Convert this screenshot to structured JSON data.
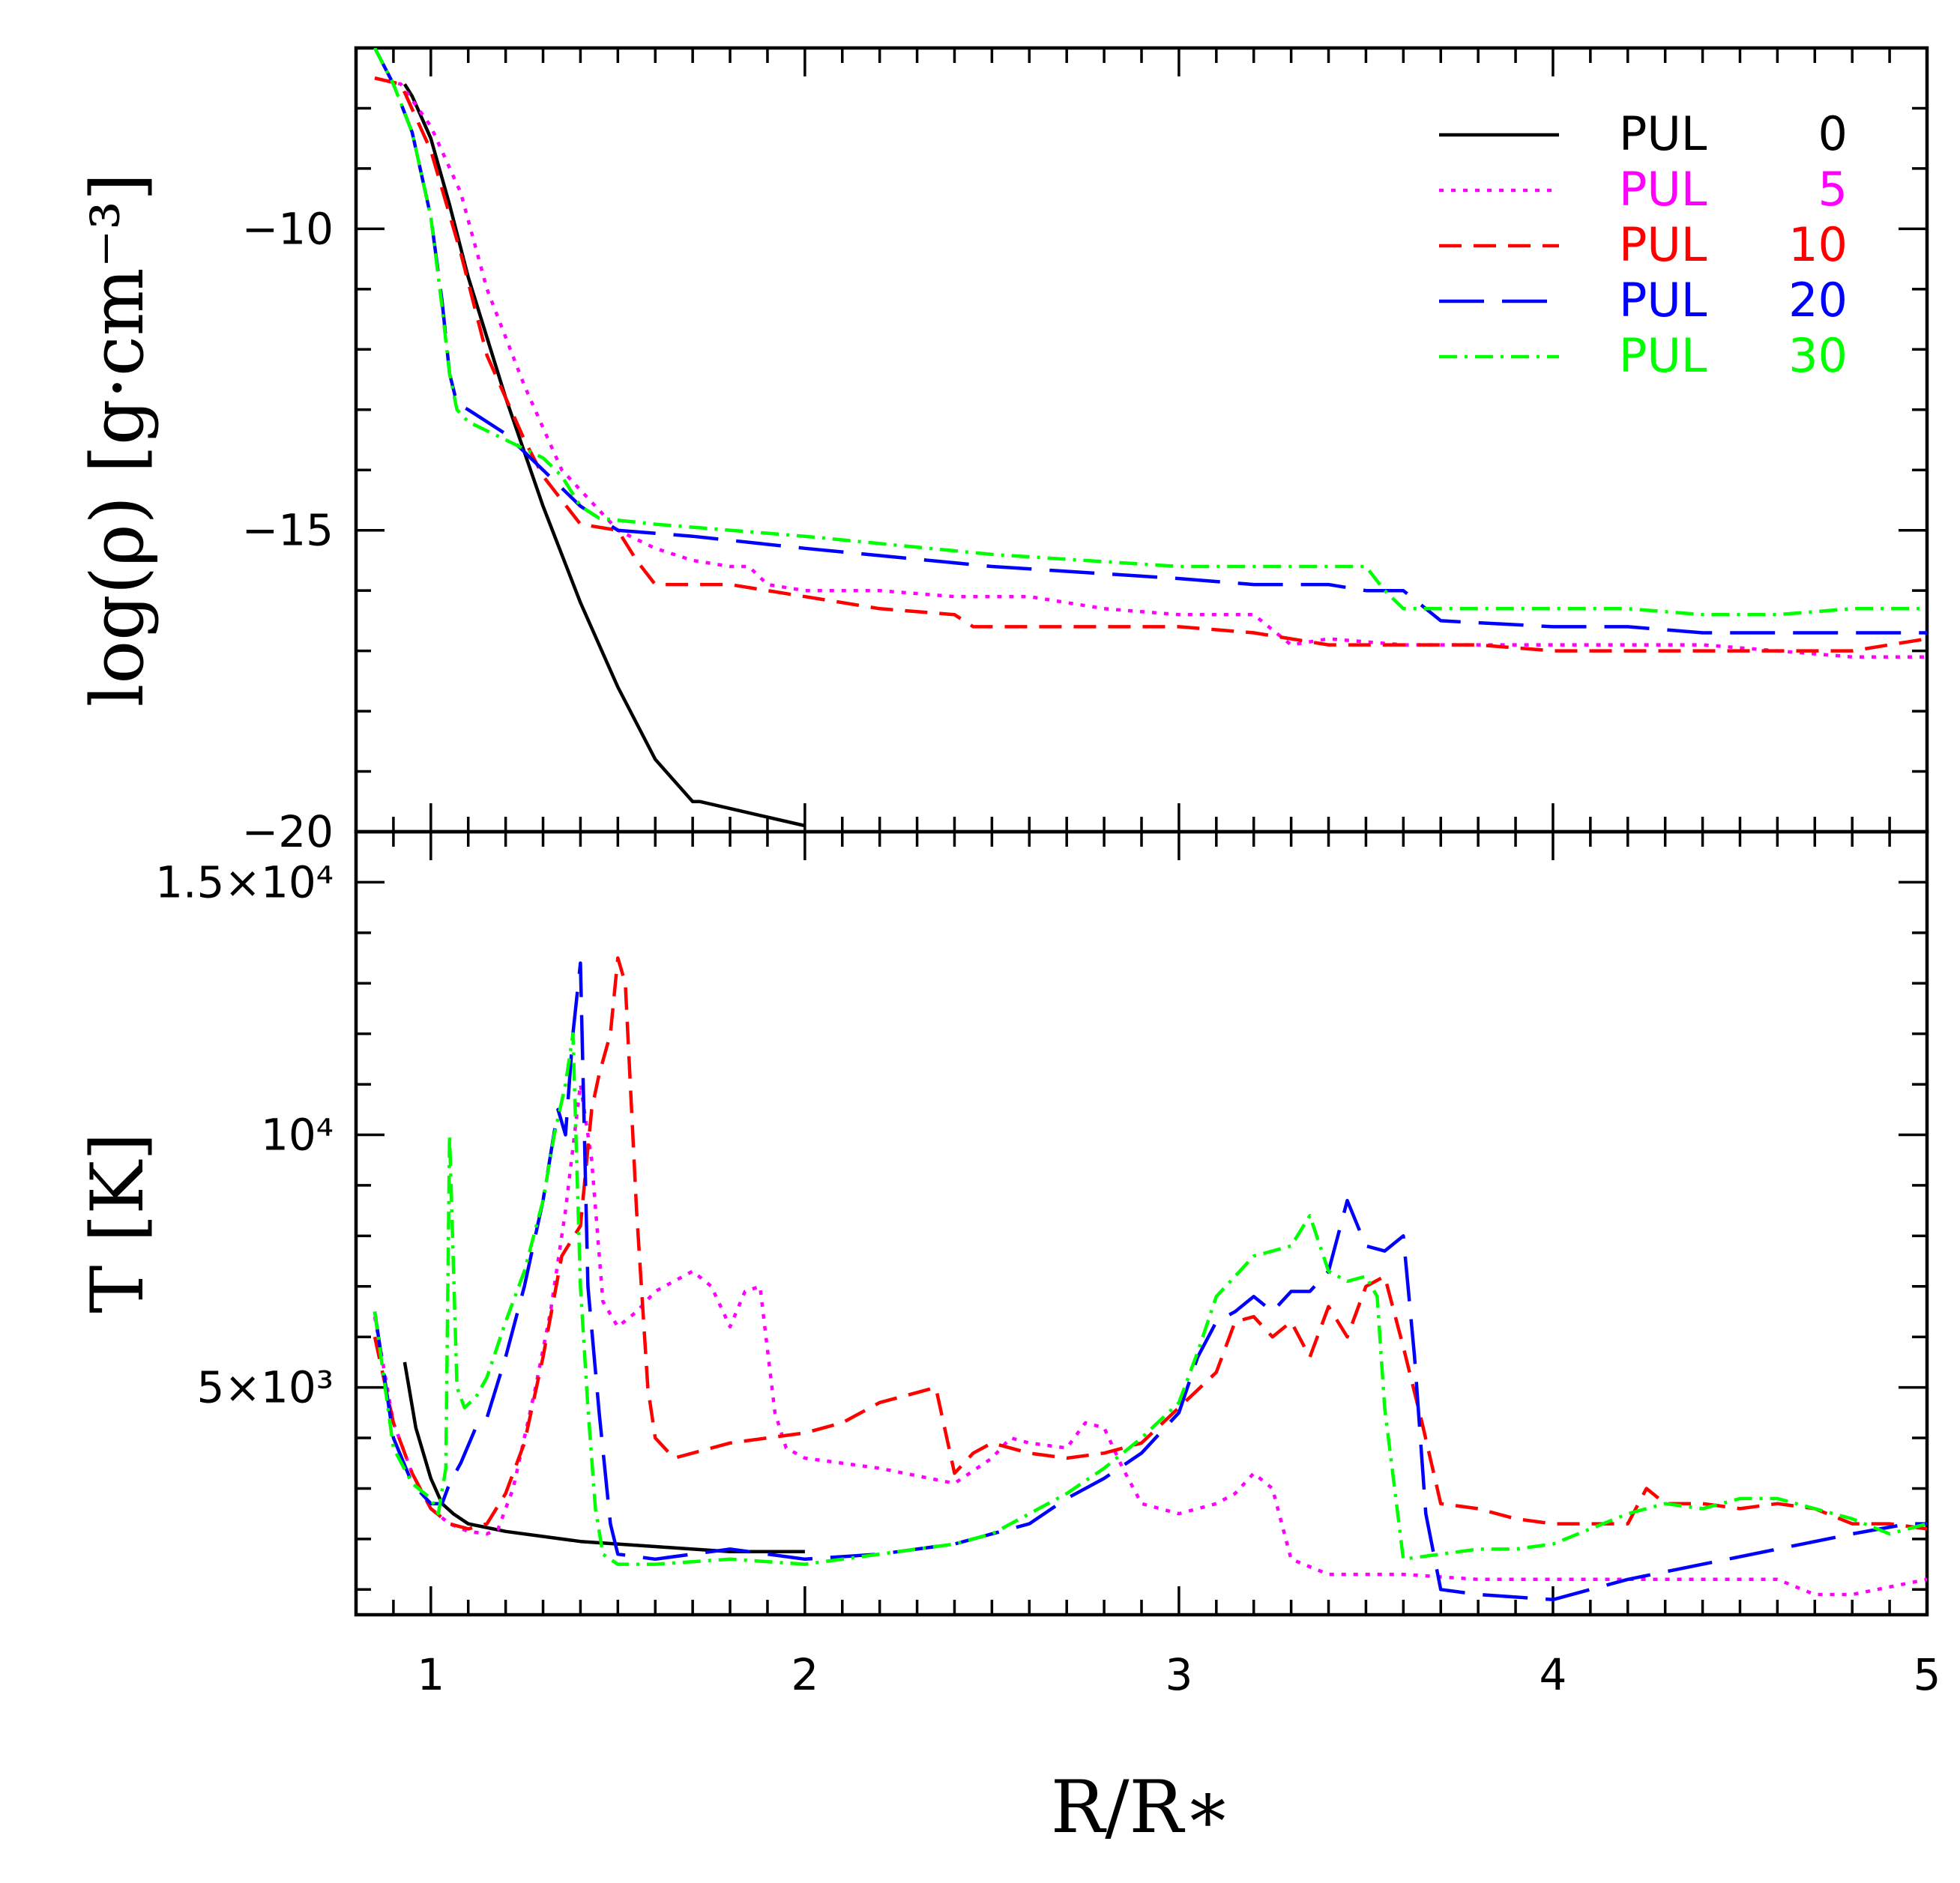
{
  "chart_data": [
    {
      "type": "line",
      "panel": "top",
      "ylabel": "log(ρ)  [g·cm⁻³]",
      "xlabel": "",
      "xlim": [
        0.8,
        5.0
      ],
      "ylim": [
        -20,
        -7
      ],
      "yticks": [
        -20,
        -15,
        -10
      ],
      "ytick_labels": [
        "−20",
        "−15",
        "−10"
      ],
      "legend": "top-right",
      "series": [
        {
          "name": "PUL 0",
          "label": "PUL",
          "num": "0",
          "color": "#000000",
          "dash": "",
          "x": [
            0.93,
            0.95,
            1.0,
            1.05,
            1.1,
            1.2,
            1.3,
            1.4,
            1.5,
            1.6,
            1.7,
            1.72,
            2.0
          ],
          "y": [
            -7.6,
            -7.8,
            -8.5,
            -9.6,
            -10.8,
            -12.8,
            -14.6,
            -16.2,
            -17.6,
            -18.8,
            -19.5,
            -19.5,
            -19.9
          ]
        },
        {
          "name": "PUL 5",
          "label": "PUL",
          "num": "5",
          "color": "#ff00ff",
          "dash": "6,10",
          "x": [
            0.85,
            0.92,
            1.0,
            1.08,
            1.15,
            1.25,
            1.35,
            1.5,
            1.6,
            1.7,
            1.8,
            1.85,
            1.9,
            2.0,
            2.2,
            2.4,
            2.6,
            2.8,
            3.0,
            3.2,
            3.3,
            3.4,
            3.6,
            3.8,
            4.0,
            4.2,
            4.4,
            4.6,
            4.8,
            5.0
          ],
          "y": [
            -7.5,
            -7.6,
            -8.3,
            -9.4,
            -11.0,
            -12.6,
            -14.0,
            -15.0,
            -15.3,
            -15.5,
            -15.6,
            -15.6,
            -15.9,
            -16.0,
            -16.0,
            -16.1,
            -16.1,
            -16.3,
            -16.4,
            -16.4,
            -16.9,
            -16.8,
            -16.9,
            -16.9,
            -16.9,
            -16.9,
            -16.9,
            -17.0,
            -17.1,
            -17.1
          ]
        },
        {
          "name": "PUL 10",
          "label": "PUL",
          "num": "10",
          "color": "#ff0000",
          "dash": "30,16",
          "x": [
            0.85,
            0.92,
            1.0,
            1.08,
            1.15,
            1.2,
            1.25,
            1.3,
            1.4,
            1.5,
            1.55,
            1.6,
            1.8,
            2.0,
            2.2,
            2.4,
            2.45,
            2.6,
            2.8,
            3.0,
            3.2,
            3.4,
            3.6,
            3.8,
            4.0,
            4.2,
            4.4,
            4.6,
            4.8,
            5.0
          ],
          "y": [
            -7.5,
            -7.6,
            -8.7,
            -10.4,
            -12.1,
            -12.8,
            -13.5,
            -14.1,
            -14.9,
            -15.0,
            -15.5,
            -15.9,
            -15.9,
            -16.1,
            -16.3,
            -16.4,
            -16.6,
            -16.6,
            -16.6,
            -16.6,
            -16.7,
            -16.9,
            -16.9,
            -16.9,
            -17.0,
            -17.0,
            -17.0,
            -17.0,
            -17.0,
            -16.8
          ]
        },
        {
          "name": "PUL 20",
          "label": "PUL",
          "num": "20",
          "color": "#0000ff",
          "dash": "60,24",
          "x": [
            0.85,
            0.9,
            0.95,
            1.0,
            1.03,
            1.05,
            1.07,
            1.1,
            1.2,
            1.3,
            1.4,
            1.5,
            1.7,
            2.0,
            2.5,
            3.0,
            3.2,
            3.4,
            3.5,
            3.6,
            3.7,
            4.0,
            4.2,
            4.4,
            4.6,
            4.8,
            4.95,
            5.0
          ],
          "y": [
            -7.0,
            -7.6,
            -8.4,
            -9.8,
            -11.2,
            -12.4,
            -12.9,
            -13.0,
            -13.4,
            -14.0,
            -14.6,
            -15.0,
            -15.1,
            -15.3,
            -15.6,
            -15.8,
            -15.9,
            -15.9,
            -16.0,
            -16.0,
            -16.5,
            -16.6,
            -16.6,
            -16.7,
            -16.7,
            -16.7,
            -16.7,
            -16.7
          ]
        },
        {
          "name": "PUL 30",
          "label": "PUL",
          "num": "30",
          "color": "#00ff00",
          "dash": "24,10,4,10",
          "x": [
            0.85,
            0.9,
            0.95,
            1.0,
            1.03,
            1.05,
            1.07,
            1.1,
            1.2,
            1.3,
            1.35,
            1.4,
            1.45,
            1.6,
            2.0,
            2.5,
            3.0,
            3.3,
            3.5,
            3.55,
            3.6,
            3.8,
            4.0,
            4.2,
            4.4,
            4.6,
            4.8,
            5.0
          ],
          "y": [
            -7.0,
            -7.6,
            -8.4,
            -9.8,
            -11.3,
            -12.4,
            -13.0,
            -13.2,
            -13.5,
            -13.8,
            -14.1,
            -14.6,
            -14.8,
            -14.9,
            -15.1,
            -15.4,
            -15.6,
            -15.6,
            -15.6,
            -16.0,
            -16.3,
            -16.3,
            -16.3,
            -16.3,
            -16.4,
            -16.4,
            -16.3,
            -16.3
          ]
        }
      ]
    },
    {
      "type": "line",
      "panel": "bottom",
      "ylabel": "T  [K]",
      "xlabel": "R/R∗",
      "xlim": [
        0.8,
        5.0
      ],
      "ylim": [
        500,
        16000
      ],
      "xticks": [
        1,
        2,
        3,
        4,
        5
      ],
      "xtick_labels": [
        "1",
        "2",
        "3",
        "4",
        "5"
      ],
      "yticks": [
        5000,
        10000,
        15000
      ],
      "ytick_labels": [
        "5×10³",
        "10⁴",
        "1.5×10⁴"
      ],
      "series": [
        {
          "name": "PUL 0",
          "color": "#000000",
          "dash": "",
          "x": [
            0.93,
            0.96,
            1.0,
            1.03,
            1.06,
            1.1,
            1.2,
            1.3,
            1.4,
            1.5,
            1.6,
            1.7,
            1.8,
            1.9,
            2.0
          ],
          "y": [
            5500,
            4200,
            3200,
            2700,
            2500,
            2300,
            2150,
            2050,
            1950,
            1900,
            1850,
            1800,
            1750,
            1750,
            1750
          ]
        },
        {
          "name": "PUL 5",
          "color": "#ff00ff",
          "dash": "6,10",
          "x": [
            0.85,
            0.9,
            0.95,
            1.0,
            1.05,
            1.1,
            1.15,
            1.18,
            1.22,
            1.28,
            1.32,
            1.36,
            1.4,
            1.43,
            1.46,
            1.5,
            1.55,
            1.6,
            1.7,
            1.75,
            1.8,
            1.84,
            1.88,
            1.92,
            1.95,
            2.0,
            2.2,
            2.4,
            2.5,
            2.55,
            2.6,
            2.7,
            2.75,
            2.8,
            2.85,
            2.9,
            3.0,
            3.1,
            3.15,
            3.2,
            3.25,
            3.3,
            3.4,
            3.6,
            3.8,
            4.0,
            4.2,
            4.4,
            4.6,
            4.7,
            4.8,
            5.0
          ],
          "y": [
            6400,
            4300,
            3300,
            2600,
            2300,
            2150,
            2100,
            2200,
            3000,
            5000,
            6500,
            8500,
            11000,
            9500,
            6700,
            6200,
            6500,
            6900,
            7300,
            7000,
            6200,
            6900,
            7000,
            4500,
            3800,
            3600,
            3400,
            3100,
            3600,
            4000,
            3900,
            3800,
            4300,
            4200,
            3400,
            2700,
            2500,
            2700,
            2900,
            3300,
            3000,
            1600,
            1300,
            1300,
            1200,
            1200,
            1200,
            1200,
            1200,
            900,
            900,
            1200
          ]
        },
        {
          "name": "PUL 10",
          "color": "#ff0000",
          "dash": "30,16",
          "x": [
            0.85,
            0.9,
            0.95,
            1.0,
            1.05,
            1.1,
            1.15,
            1.2,
            1.25,
            1.3,
            1.35,
            1.4,
            1.43,
            1.45,
            1.48,
            1.5,
            1.52,
            1.55,
            1.58,
            1.6,
            1.65,
            1.8,
            2.0,
            2.1,
            2.2,
            2.3,
            2.35,
            2.4,
            2.45,
            2.5,
            2.6,
            2.7,
            2.8,
            2.9,
            3.0,
            3.1,
            3.15,
            3.2,
            3.25,
            3.3,
            3.35,
            3.4,
            3.45,
            3.5,
            3.55,
            3.6,
            3.65,
            3.7,
            3.8,
            3.9,
            4.0,
            4.1,
            4.2,
            4.25,
            4.3,
            4.4,
            4.5,
            4.6,
            4.7,
            4.8,
            4.9,
            5.0
          ],
          "y": [
            6000,
            4300,
            3300,
            2600,
            2300,
            2200,
            2300,
            2900,
            3900,
            5600,
            7600,
            8200,
            10500,
            11200,
            12000,
            13500,
            13000,
            8500,
            5000,
            4000,
            3600,
            3900,
            4100,
            4300,
            4700,
            4900,
            5000,
            3300,
            3700,
            3900,
            3700,
            3600,
            3700,
            3900,
            4600,
            5300,
            6300,
            6400,
            6000,
            6300,
            5600,
            6600,
            6000,
            7000,
            7200,
            5800,
            4300,
            2700,
            2600,
            2400,
            2300,
            2300,
            2300,
            3000,
            2700,
            2700,
            2600,
            2700,
            2600,
            2300,
            2300,
            2200
          ]
        },
        {
          "name": "PUL 20",
          "color": "#0000ff",
          "dash": "60,24",
          "x": [
            0.85,
            0.9,
            0.95,
            1.0,
            1.03,
            1.05,
            1.08,
            1.12,
            1.15,
            1.2,
            1.25,
            1.3,
            1.34,
            1.36,
            1.38,
            1.4,
            1.42,
            1.45,
            1.48,
            1.5,
            1.6,
            1.8,
            2.0,
            2.2,
            2.4,
            2.5,
            2.6,
            2.7,
            2.8,
            2.9,
            3.0,
            3.05,
            3.1,
            3.15,
            3.2,
            3.25,
            3.3,
            3.35,
            3.4,
            3.45,
            3.5,
            3.55,
            3.6,
            3.63,
            3.66,
            3.7,
            3.8,
            4.0,
            4.2,
            4.4,
            4.6,
            4.8,
            4.95,
            5.0
          ],
          "y": [
            6500,
            4000,
            3100,
            2700,
            2700,
            3100,
            3500,
            4200,
            4400,
            5600,
            7000,
            8700,
            10500,
            10000,
            12000,
            13400,
            7000,
            4500,
            2300,
            1700,
            1600,
            1800,
            1600,
            1700,
            1900,
            2100,
            2300,
            2800,
            3200,
            3700,
            4500,
            5600,
            6300,
            6500,
            6800,
            6500,
            6900,
            6900,
            7300,
            8700,
            7800,
            7700,
            8000,
            5600,
            2500,
            1000,
            900,
            800,
            1200,
            1500,
            1800,
            2100,
            2300,
            2300
          ]
        },
        {
          "name": "PUL 30",
          "color": "#00ff00",
          "dash": "24,10,4,10",
          "x": [
            0.85,
            0.9,
            0.95,
            1.0,
            1.02,
            1.04,
            1.05,
            1.07,
            1.09,
            1.12,
            1.15,
            1.2,
            1.25,
            1.3,
            1.33,
            1.36,
            1.38,
            1.4,
            1.42,
            1.44,
            1.46,
            1.5,
            1.6,
            1.8,
            2.0,
            2.2,
            2.4,
            2.5,
            2.6,
            2.7,
            2.8,
            2.9,
            3.0,
            3.05,
            3.1,
            3.15,
            3.2,
            3.25,
            3.3,
            3.35,
            3.4,
            3.45,
            3.5,
            3.53,
            3.55,
            3.6,
            3.7,
            3.8,
            3.9,
            4.0,
            4.1,
            4.2,
            4.3,
            4.4,
            4.5,
            4.6,
            4.7,
            4.8,
            4.9,
            5.0
          ],
          "y": [
            6500,
            3800,
            3100,
            2800,
            2500,
            3400,
            10000,
            5000,
            4600,
            4800,
            5200,
            6300,
            7300,
            8700,
            10000,
            11000,
            12000,
            7000,
            4600,
            2600,
            1700,
            1500,
            1500,
            1600,
            1500,
            1700,
            1900,
            2100,
            2500,
            2900,
            3400,
            4000,
            4700,
            5700,
            6800,
            7200,
            7600,
            7700,
            7800,
            8400,
            7300,
            7100,
            7200,
            6800,
            4600,
            1600,
            1700,
            1800,
            1800,
            1900,
            2200,
            2500,
            2700,
            2600,
            2800,
            2800,
            2600,
            2400,
            2100,
            2300
          ]
        }
      ]
    }
  ]
}
